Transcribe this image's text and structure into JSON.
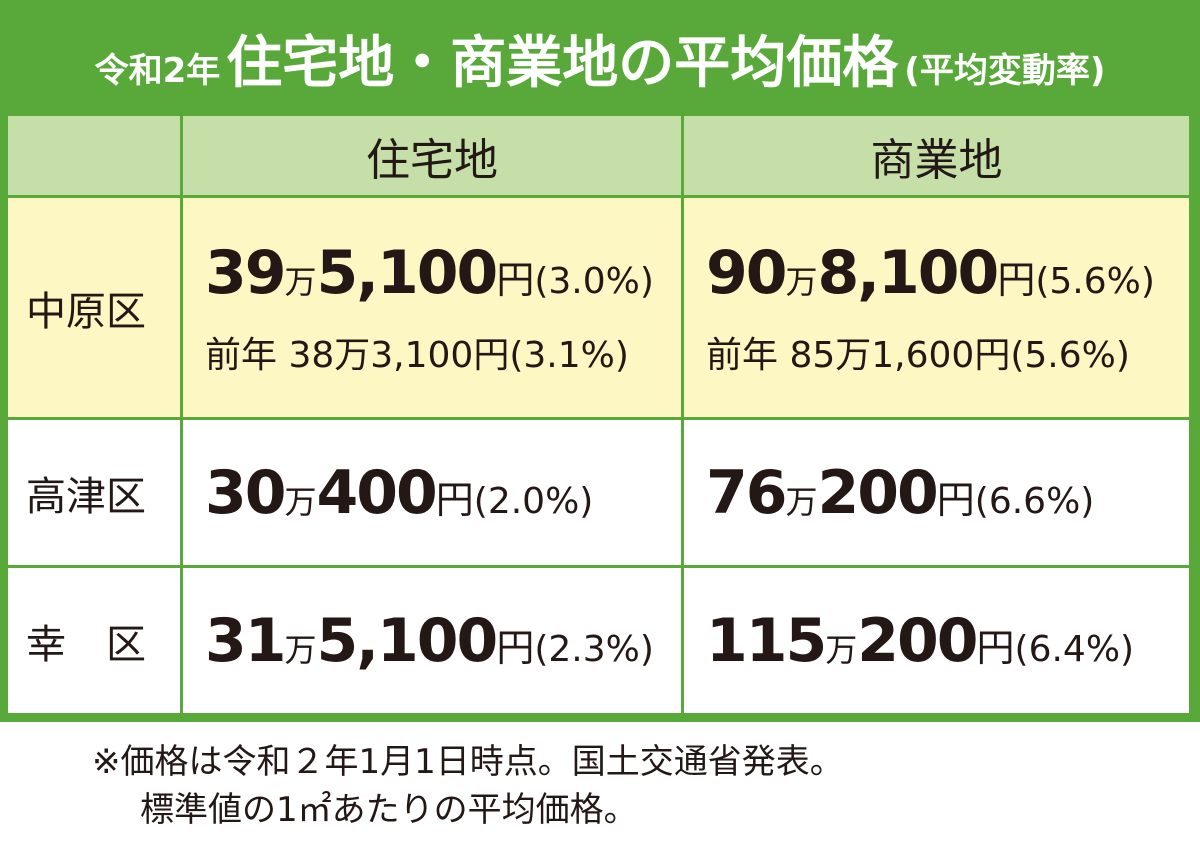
{
  "title": {
    "prefix": "令和2年",
    "main": "住宅地・商業地の平均価格",
    "suffix": "(平均変動率)"
  },
  "table": {
    "header": [
      "住宅地",
      "商業地"
    ],
    "rows": [
      {
        "label": "中原区",
        "cells": [
          {
            "man": "39",
            "man_unit": "万",
            "rest": "5,100",
            "yen_unit": "円",
            "rate": "(3.0%)",
            "prev": "前年 38万3,100円(3.1%)"
          },
          {
            "man": "90",
            "man_unit": "万",
            "rest": "8,100",
            "yen_unit": "円",
            "rate": "(5.6%)",
            "prev": "前年 85万1,600円(5.6%)"
          }
        ]
      },
      {
        "label": "高津区",
        "cells": [
          {
            "man": "30",
            "man_unit": "万",
            "rest": "400",
            "yen_unit": "円",
            "rate": "(2.0%)"
          },
          {
            "man": "76",
            "man_unit": "万",
            "rest": "200",
            "yen_unit": "円",
            "rate": "(6.6%)"
          }
        ]
      },
      {
        "label": "幸　区",
        "cells": [
          {
            "man": "31",
            "man_unit": "万",
            "rest": "5,100",
            "yen_unit": "円",
            "rate": "(2.3%)"
          },
          {
            "man": "115",
            "man_unit": "万",
            "rest": "200",
            "yen_unit": "円",
            "rate": "(6.4%)"
          }
        ]
      }
    ]
  },
  "notes": [
    "※価格は令和２年1月1日時点。国土交通省発表。",
    "標準値の1㎡あたりの平均価格。"
  ]
}
